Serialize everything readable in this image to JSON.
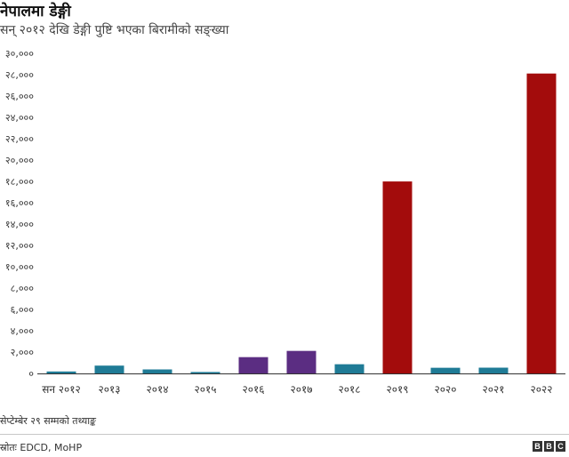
{
  "title": "नेपालमा डेङ्गी",
  "subtitle": "सन् २०१२ देखि डेङ्गी पुष्टि भएका बिरामीको सङ्ख्या",
  "note": "सेप्टेम्बेर २९ सम्मको तथ्याङ्क",
  "source": "स्रोतः EDCD, MoHP",
  "logo": [
    "B",
    "B",
    "C"
  ],
  "colors": {
    "teal": "#1f7b96",
    "purple": "#5b2d82",
    "red": "#a30c0c"
  },
  "chart_data": {
    "type": "bar",
    "categories": [
      "सन २०१२",
      "२०१३",
      "२०१४",
      "२०१५",
      "२०१६",
      "२०१७",
      "२०१८",
      "२०१९",
      "२०२०",
      "२०२१",
      "२०२२"
    ],
    "values": [
      183,
      732,
      374,
      134,
      1527,
      2111,
      861,
      17992,
      530,
      540,
      28109
    ],
    "bar_colors": [
      "teal",
      "teal",
      "teal",
      "teal",
      "purple",
      "purple",
      "teal",
      "red",
      "teal",
      "teal",
      "red"
    ],
    "ylim": [
      0,
      30000
    ],
    "yticks": [
      0,
      2000,
      4000,
      6000,
      8000,
      10000,
      12000,
      14000,
      16000,
      18000,
      20000,
      22000,
      24000,
      26000,
      28000,
      30000
    ],
    "ytick_labels": [
      "०",
      "२,०००",
      "४,०००",
      "६,०००",
      "८,०००",
      "१०,०००",
      "१२,०००",
      "१४,०००",
      "१६,०००",
      "१८,०००",
      "२०,०००",
      "२२,०००",
      "२४,०००",
      "२६,०००",
      "२८,०००",
      "३०,०००"
    ],
    "grid": false,
    "xlabel": "",
    "ylabel": ""
  }
}
